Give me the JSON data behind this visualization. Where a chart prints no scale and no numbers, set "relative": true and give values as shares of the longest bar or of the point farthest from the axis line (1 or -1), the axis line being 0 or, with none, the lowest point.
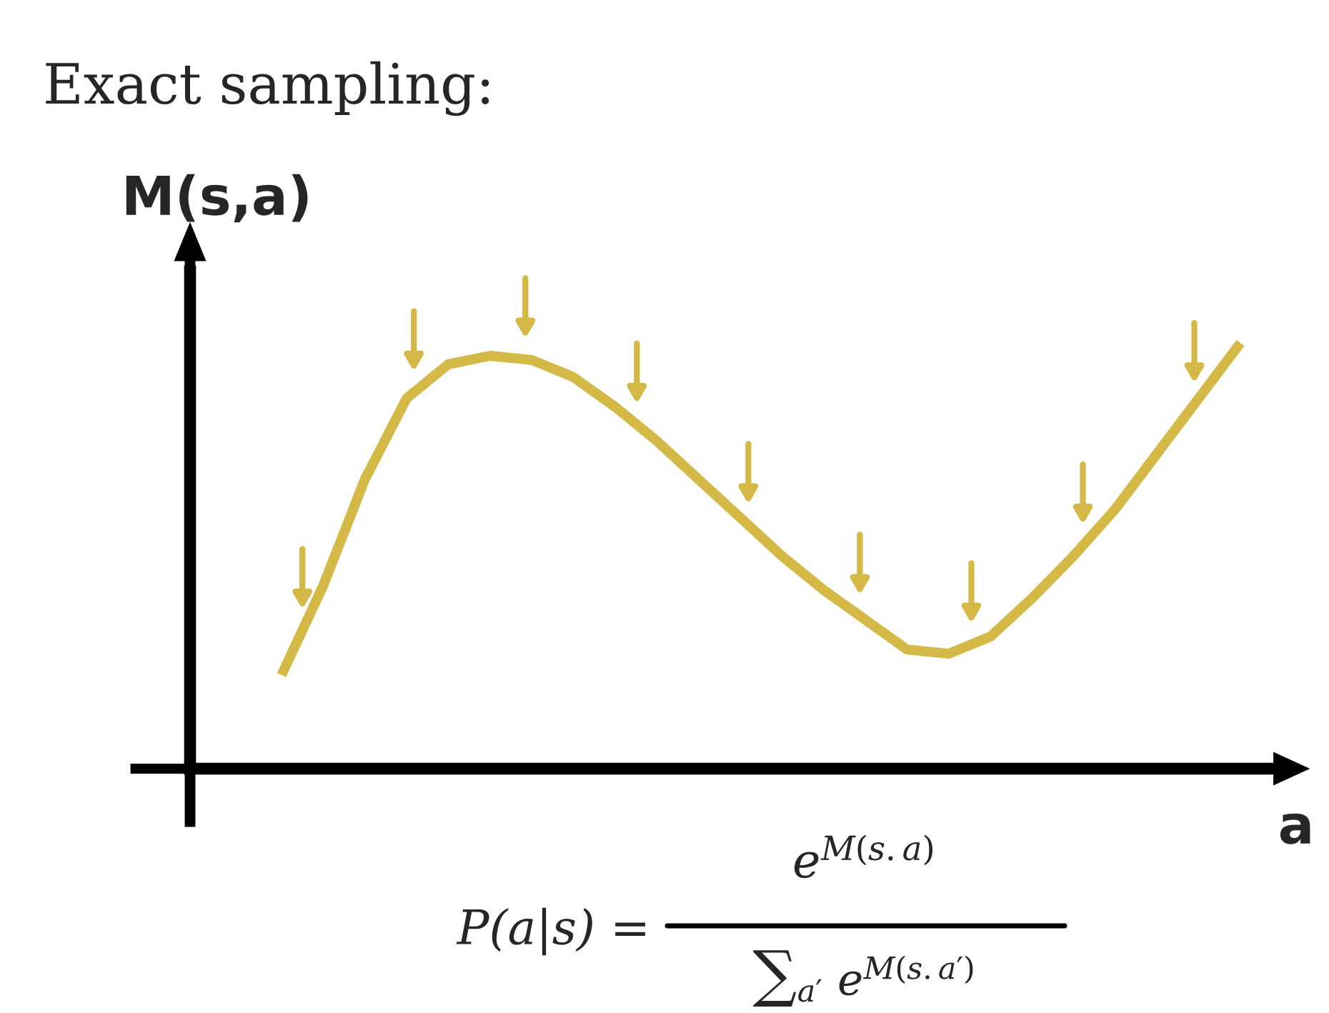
{
  "chart_data": {
    "type": "line",
    "title": "Exact sampling:",
    "ylabel": "M(s,a)",
    "xlabel": "a",
    "relative": true,
    "categories": [
      null,
      null,
      null,
      null,
      null,
      null,
      null,
      null,
      null,
      null,
      null,
      null,
      null,
      null,
      null,
      null,
      null,
      null,
      null,
      null,
      null,
      null,
      null,
      null
    ],
    "series": [
      {
        "color": "#d4b947",
        "values": [
          0.22,
          0.43,
          0.68,
          0.87,
          0.95,
          0.97,
          0.96,
          0.92,
          0.85,
          0.77,
          0.68,
          0.59,
          0.5,
          0.42,
          0.35,
          0.28,
          0.27,
          0.31,
          0.4,
          0.5,
          0.61,
          0.74,
          0.87,
          1.0
        ]
      }
    ],
    "annotations": [
      "P(a|s) =",
      "e$^{M(s.a)}$",
      "∑$_{a′}$ e$^{M(s.a′)}$"
    ],
    "marker": "none",
    "line_style": "solid"
  }
}
